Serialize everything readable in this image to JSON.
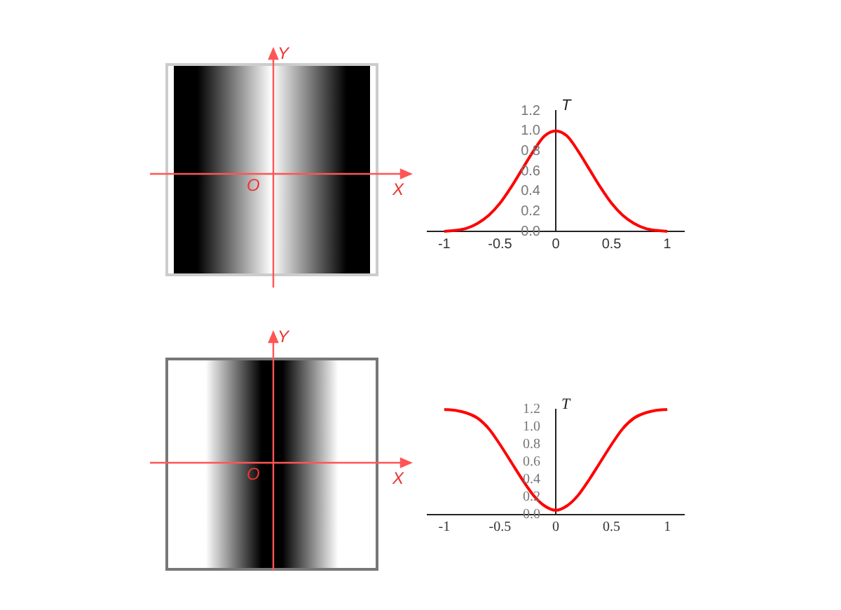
{
  "chart_data": [
    {
      "type": "other",
      "annotations": [
        "Y",
        "X",
        "O"
      ]
    },
    {
      "type": "line",
      "ylabel": "T",
      "x": [
        -1,
        -0.9,
        -0.8,
        -0.7,
        -0.6,
        -0.5,
        -0.4,
        -0.3,
        -0.2,
        -0.1,
        0,
        0.1,
        0.2,
        0.3,
        0.4,
        0.5,
        0.6,
        0.7,
        0.8,
        0.9,
        1
      ],
      "series": [
        {
          "color": "#ff0000",
          "values": [
            0.0,
            0.01,
            0.03,
            0.08,
            0.16,
            0.28,
            0.44,
            0.62,
            0.8,
            0.95,
            1.0,
            0.95,
            0.8,
            0.62,
            0.44,
            0.28,
            0.16,
            0.08,
            0.03,
            0.01,
            0.0
          ]
        }
      ],
      "xlim": [
        -1.15,
        1.15
      ],
      "xticks": [
        -1,
        -0.5,
        0,
        0.5,
        1
      ],
      "ylim": [
        0,
        1.2
      ],
      "yticks": [
        {
          "value": 0,
          "label": "0.0"
        },
        {
          "value": 0.2,
          "label": "0.2"
        },
        {
          "value": 0.4,
          "label": "0.4"
        },
        {
          "value": 0.6,
          "label": "0.6"
        },
        {
          "value": 0.8,
          "label": "0.8"
        },
        {
          "value": 1,
          "label": "1.0"
        },
        {
          "value": 1.2,
          "label": "1.2"
        }
      ],
      "grid": false,
      "marker": "none",
      "line_style": "solid"
    },
    {
      "type": "other",
      "annotations": [
        "Y",
        "X",
        "O"
      ]
    },
    {
      "type": "line",
      "ylabel": "T",
      "x": [
        -1,
        -0.9,
        -0.8,
        -0.7,
        -0.6,
        -0.5,
        -0.4,
        -0.3,
        -0.2,
        -0.1,
        0,
        0.1,
        0.2,
        0.3,
        0.4,
        0.5,
        0.6,
        0.7,
        0.8,
        0.9,
        1
      ],
      "series": [
        {
          "color": "#ff0000",
          "values": [
            1.2,
            1.19,
            1.16,
            1.1,
            0.98,
            0.8,
            0.6,
            0.4,
            0.22,
            0.1,
            0.05,
            0.1,
            0.22,
            0.4,
            0.6,
            0.8,
            0.98,
            1.1,
            1.16,
            1.19,
            1.2
          ]
        }
      ],
      "xlim": [
        -1.15,
        1.15
      ],
      "xticks": [
        -1,
        -0.5,
        0,
        0.5,
        1
      ],
      "ylim": [
        0,
        1.2
      ],
      "yticks": [
        {
          "value": 0,
          "label": "0.0"
        },
        {
          "value": 0.2,
          "label": "0.2"
        },
        {
          "value": 0.4,
          "label": "0.4"
        },
        {
          "value": 0.6,
          "label": "0.6"
        },
        {
          "value": 0.8,
          "label": "0.8"
        },
        {
          "value": 1,
          "label": "1.0"
        },
        {
          "value": 1.2,
          "label": "1.2"
        }
      ],
      "grid": false,
      "marker": "none",
      "line_style": "solid"
    }
  ]
}
